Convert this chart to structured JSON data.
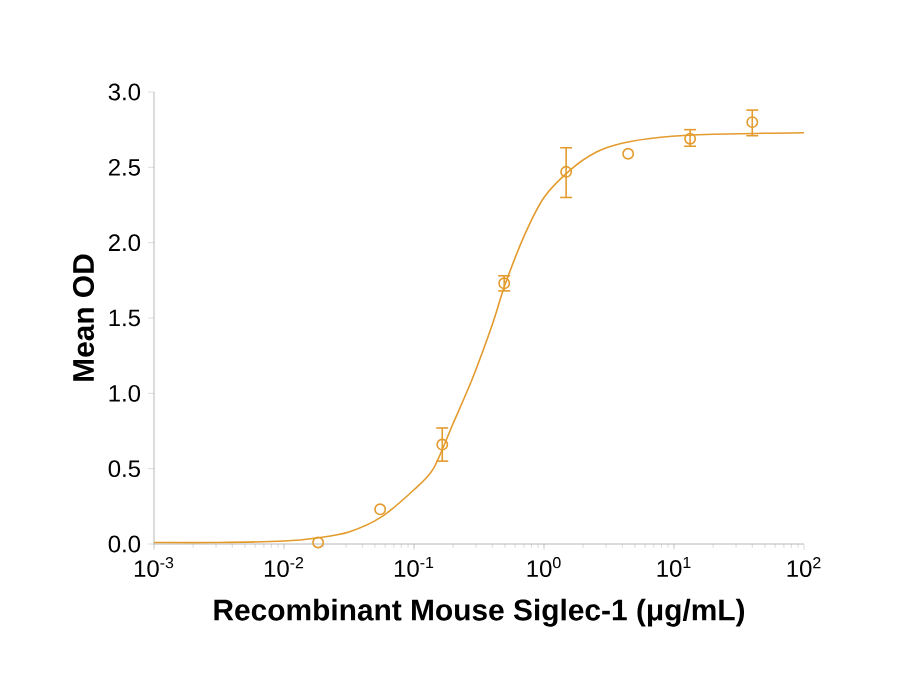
{
  "chart_data": {
    "type": "scatter",
    "xlabel": "Recombinant Mouse Siglec-1 (μg/mL)",
    "ylabel": "Mean OD",
    "log": "x",
    "grid": false,
    "xlim": [
      0.001,
      100
    ],
    "ylim": [
      0,
      3
    ],
    "xticks": [
      {
        "value": 0.001,
        "label": "10$^{-3}$"
      },
      {
        "value": 0.01,
        "label": "10$^{-2}$"
      },
      {
        "value": 0.1,
        "label": "10$^{-1}$"
      },
      {
        "value": 1,
        "label": "10$^{0}$"
      },
      {
        "value": 10,
        "label": "10$^{1}$"
      },
      {
        "value": 100,
        "label": "10$^{2}$"
      }
    ],
    "yticks": [
      {
        "value": 0,
        "label": "0.0"
      },
      {
        "value": 0.5,
        "label": "0.5"
      },
      {
        "value": 1,
        "label": "1.0"
      },
      {
        "value": 1.5,
        "label": "1.5"
      },
      {
        "value": 2,
        "label": "2.0"
      },
      {
        "value": 2.5,
        "label": "2.5"
      },
      {
        "value": 3,
        "label": "3.0"
      }
    ],
    "series": [
      {
        "marker": "circle",
        "color": "#e39b2d",
        "x": [
          0.0183,
          0.0549,
          0.165,
          0.494,
          1.48,
          4.44,
          13.3,
          40
        ],
        "values": [
          0.01,
          0.23,
          0.66,
          1.73,
          2.47,
          2.59,
          2.69,
          2.8
        ],
        "errors": [
          null,
          null,
          [
            0.55,
            0.77
          ],
          [
            1.68,
            1.78
          ],
          [
            2.3,
            2.63
          ],
          null,
          [
            2.64,
            2.75
          ],
          [
            2.71,
            2.88
          ]
        ]
      },
      {
        "type": "line",
        "marker": "none",
        "color": "#e39b2d",
        "x": [
          0.001,
          0.00316,
          0.01,
          0.0178,
          0.0316,
          0.0562,
          0.1,
          0.141,
          0.2,
          0.282,
          0.398,
          0.501,
          0.708,
          1,
          1.58,
          2.51,
          3.98,
          7.94,
          20,
          100
        ],
        "values": [
          0.01,
          0.01,
          0.02,
          0.04,
          0.08,
          0.18,
          0.36,
          0.5,
          0.8,
          1.1,
          1.45,
          1.72,
          2.05,
          2.3,
          2.48,
          2.6,
          2.66,
          2.7,
          2.72,
          2.73
        ]
      }
    ]
  }
}
